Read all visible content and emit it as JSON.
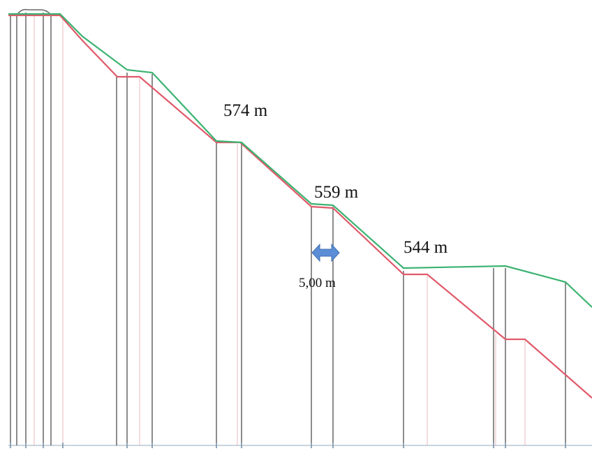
{
  "annotations": {
    "elevation_1": "574 m",
    "elevation_2": "559 m",
    "elevation_3": "544 m",
    "width_label": "5,00 m"
  },
  "colors": {
    "ground_line": "#3cb371",
    "design_line": "#e05a6a",
    "station_line": "#555555",
    "faint_line": "#e8b8bc",
    "arrow": "#5b8ed6",
    "baseline": "#c9d3dc"
  },
  "icons": {
    "dimension_arrow": "double-arrow-icon"
  }
}
